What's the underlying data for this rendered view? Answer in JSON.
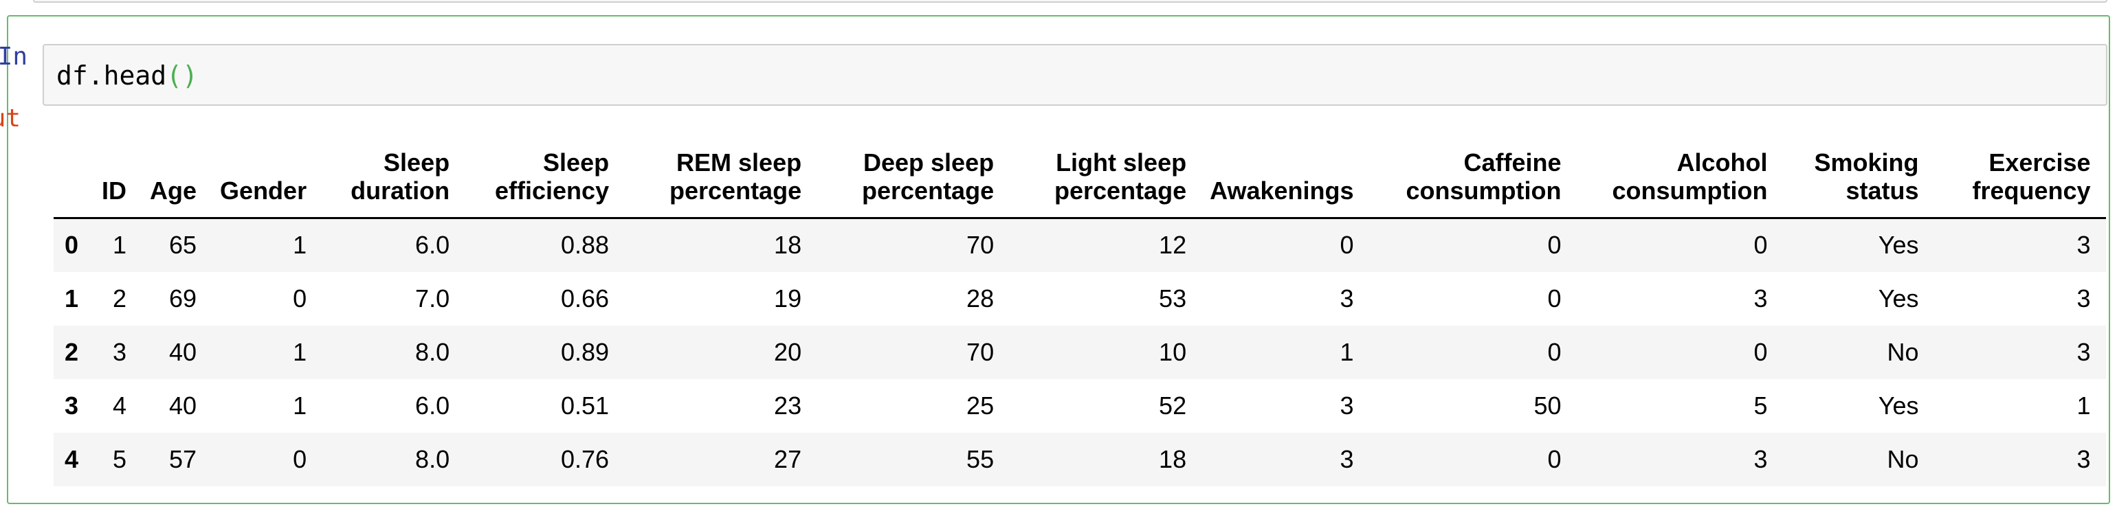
{
  "notebook": {
    "input_prompt": "In [ ]:",
    "output_prompt": "Out[ ]:",
    "code": {
      "prefix": "df.head",
      "parens": "()"
    }
  },
  "dataframe": {
    "columns": [
      "",
      "ID",
      "Age",
      "Gender",
      "Sleep\nduration",
      "Sleep\nefficiency",
      "REM sleep\npercentage",
      "Deep sleep\npercentage",
      "Light sleep\npercentage",
      "Awakenings",
      "Caffeine\nconsumption",
      "Alcohol\nconsumption",
      "Smoking\nstatus",
      "Exercise\nfrequency"
    ],
    "rows": [
      [
        "0",
        "1",
        "65",
        "1",
        "6.0",
        "0.88",
        "18",
        "70",
        "12",
        "0",
        "0",
        "0",
        "Yes",
        "3"
      ],
      [
        "1",
        "2",
        "69",
        "0",
        "7.0",
        "0.66",
        "19",
        "28",
        "53",
        "3",
        "0",
        "3",
        "Yes",
        "3"
      ],
      [
        "2",
        "3",
        "40",
        "1",
        "8.0",
        "0.89",
        "20",
        "70",
        "10",
        "1",
        "0",
        "0",
        "No",
        "3"
      ],
      [
        "3",
        "4",
        "40",
        "1",
        "6.0",
        "0.51",
        "23",
        "25",
        "52",
        "3",
        "50",
        "5",
        "Yes",
        "1"
      ],
      [
        "4",
        "5",
        "57",
        "0",
        "8.0",
        "0.76",
        "27",
        "55",
        "18",
        "3",
        "0",
        "3",
        "No",
        "3"
      ]
    ]
  }
}
